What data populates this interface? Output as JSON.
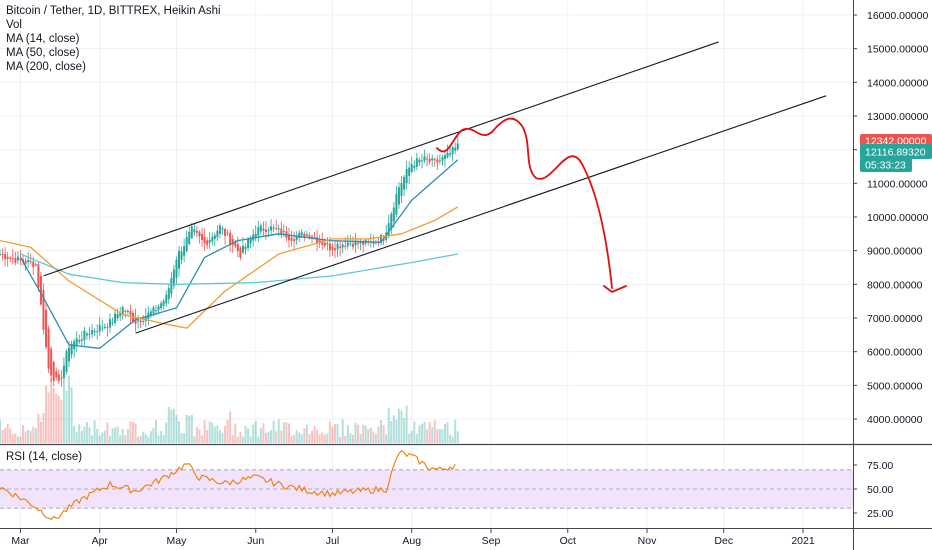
{
  "legend": {
    "title": "Bitcoin / Tether, 1D, BITTREX, Heikin Ashi",
    "vol": "Vol",
    "ma14": "MA (14, close)",
    "ma50": "MA (50, close)",
    "ma200": "MA (200, close)"
  },
  "rsi_legend": "RSI (14, close)",
  "badges": {
    "last_price": "12342.00000",
    "ma_value": "12116.89320",
    "countdown": "05:33:23"
  },
  "colors": {
    "up": "#26a69a",
    "down": "#ef5350",
    "ma14": "#2a8fb3",
    "ma50": "#f39c33",
    "ma200": "#5ec8d6",
    "rsi": "#f57c00",
    "rsi_band": "#f0e3fb",
    "drawing": "#e01010",
    "trendline": "#131722"
  },
  "chart_data": [
    {
      "type": "candlestick",
      "title": "Bitcoin / Tether, 1D, BITTREX, Heikin Ashi",
      "x_ticks": [
        "Mar",
        "Apr",
        "May",
        "Jun",
        "Jul",
        "Aug",
        "Sep",
        "Oct",
        "Nov",
        "Dec",
        "2021"
      ],
      "y_ticks": [
        "4000.00000",
        "5000.00000",
        "6000.00000",
        "7000.00000",
        "8000.00000",
        "9000.00000",
        "10000.00000",
        "11000.00000",
        "12000.00000",
        "13000.00000",
        "14000.00000",
        "15000.00000",
        "16000.00000"
      ],
      "ylim": [
        3300,
        16500
      ],
      "price_path": [
        [
          "2020-02-22",
          8900
        ],
        [
          "2020-03-01",
          8700
        ],
        [
          "2020-03-07",
          8600
        ],
        [
          "2020-03-12",
          5500
        ],
        [
          "2020-03-16",
          5000
        ],
        [
          "2020-03-20",
          6200
        ],
        [
          "2020-03-28",
          6600
        ],
        [
          "2020-04-05",
          6850
        ],
        [
          "2020-04-10",
          7300
        ],
        [
          "2020-04-15",
          6900
        ],
        [
          "2020-04-22",
          7200
        ],
        [
          "2020-04-27",
          7600
        ],
        [
          "2020-05-01",
          8800
        ],
        [
          "2020-05-07",
          9600
        ],
        [
          "2020-05-12",
          9200
        ],
        [
          "2020-05-18",
          9700
        ],
        [
          "2020-05-26",
          8900
        ],
        [
          "2020-06-01",
          9600
        ],
        [
          "2020-06-06",
          9700
        ],
        [
          "2020-06-15",
          9400
        ],
        [
          "2020-06-22",
          9500
        ],
        [
          "2020-06-30",
          9100
        ],
        [
          "2020-07-07",
          9250
        ],
        [
          "2020-07-15",
          9200
        ],
        [
          "2020-07-21",
          9400
        ],
        [
          "2020-07-27",
          10900
        ],
        [
          "2020-08-01",
          11600
        ],
        [
          "2020-08-06",
          11700
        ],
        [
          "2020-08-10",
          11600
        ],
        [
          "2020-08-15",
          11800
        ],
        [
          "2020-08-19",
          12100
        ]
      ],
      "moving_averages": [
        {
          "name": "MA (14, close)",
          "points": [
            [
              "2020-03-01",
              8800
            ],
            [
              "2020-03-10",
              7600
            ],
            [
              "2020-03-20",
              6200
            ],
            [
              "2020-04-01",
              6100
            ],
            [
              "2020-04-15",
              6950
            ],
            [
              "2020-05-01",
              7300
            ],
            [
              "2020-05-12",
              8800
            ],
            [
              "2020-05-25",
              9300
            ],
            [
              "2020-06-10",
              9500
            ],
            [
              "2020-06-30",
              9300
            ],
            [
              "2020-07-20",
              9250
            ],
            [
              "2020-08-01",
              10500
            ],
            [
              "2020-08-19",
              11700
            ]
          ]
        },
        {
          "name": "MA (50, close)",
          "points": [
            [
              "2020-02-22",
              9300
            ],
            [
              "2020-03-05",
              9100
            ],
            [
              "2020-03-20",
              8100
            ],
            [
              "2020-04-10",
              7100
            ],
            [
              "2020-04-28",
              6800
            ],
            [
              "2020-05-05",
              6700
            ],
            [
              "2020-05-20",
              7800
            ],
            [
              "2020-06-10",
              8900
            ],
            [
              "2020-07-01",
              9350
            ],
            [
              "2020-07-15",
              9350
            ],
            [
              "2020-07-28",
              9500
            ],
            [
              "2020-08-10",
              9900
            ],
            [
              "2020-08-19",
              10300
            ]
          ]
        },
        {
          "name": "MA (200, close)",
          "points": [
            [
              "2020-03-01",
              8900
            ],
            [
              "2020-03-20",
              8300
            ],
            [
              "2020-04-10",
              8050
            ],
            [
              "2020-05-01",
              8000
            ],
            [
              "2020-06-01",
              8050
            ],
            [
              "2020-07-01",
              8250
            ],
            [
              "2020-08-01",
              8650
            ],
            [
              "2020-08-19",
              8900
            ]
          ]
        }
      ],
      "channel_lines": [
        {
          "from": [
            "2020-03-10",
            8250
          ],
          "to": [
            "2020-11-29",
            15200
          ]
        },
        {
          "from": [
            "2020-04-15",
            6550
          ],
          "to": [
            "2021-01-10",
            13600
          ]
        }
      ],
      "price_badges": [
        "12342.00000",
        "12116.89320",
        "05:33:23"
      ]
    },
    {
      "type": "line",
      "title": "RSI (14, close)",
      "y_ticks": [
        "25.00",
        "50.00",
        "75.00"
      ],
      "ylim": [
        10,
        90
      ],
      "band": [
        30,
        70
      ],
      "series": [
        {
          "name": "RSI (14, close)",
          "points": [
            [
              "2020-02-22",
              52
            ],
            [
              "2020-03-05",
              35
            ],
            [
              "2020-03-14",
              18
            ],
            [
              "2020-03-24",
              38
            ],
            [
              "2020-04-05",
              55
            ],
            [
              "2020-04-15",
              48
            ],
            [
              "2020-04-25",
              60
            ],
            [
              "2020-05-05",
              76
            ],
            [
              "2020-05-10",
              62
            ],
            [
              "2020-05-20",
              56
            ],
            [
              "2020-06-01",
              62
            ],
            [
              "2020-06-10",
              55
            ],
            [
              "2020-06-22",
              48
            ],
            [
              "2020-07-01",
              45
            ],
            [
              "2020-07-12",
              48
            ],
            [
              "2020-07-22",
              50
            ],
            [
              "2020-07-27",
              88
            ],
            [
              "2020-08-01",
              84
            ],
            [
              "2020-08-08",
              72
            ],
            [
              "2020-08-12",
              70
            ],
            [
              "2020-08-19",
              76
            ]
          ]
        }
      ]
    }
  ]
}
